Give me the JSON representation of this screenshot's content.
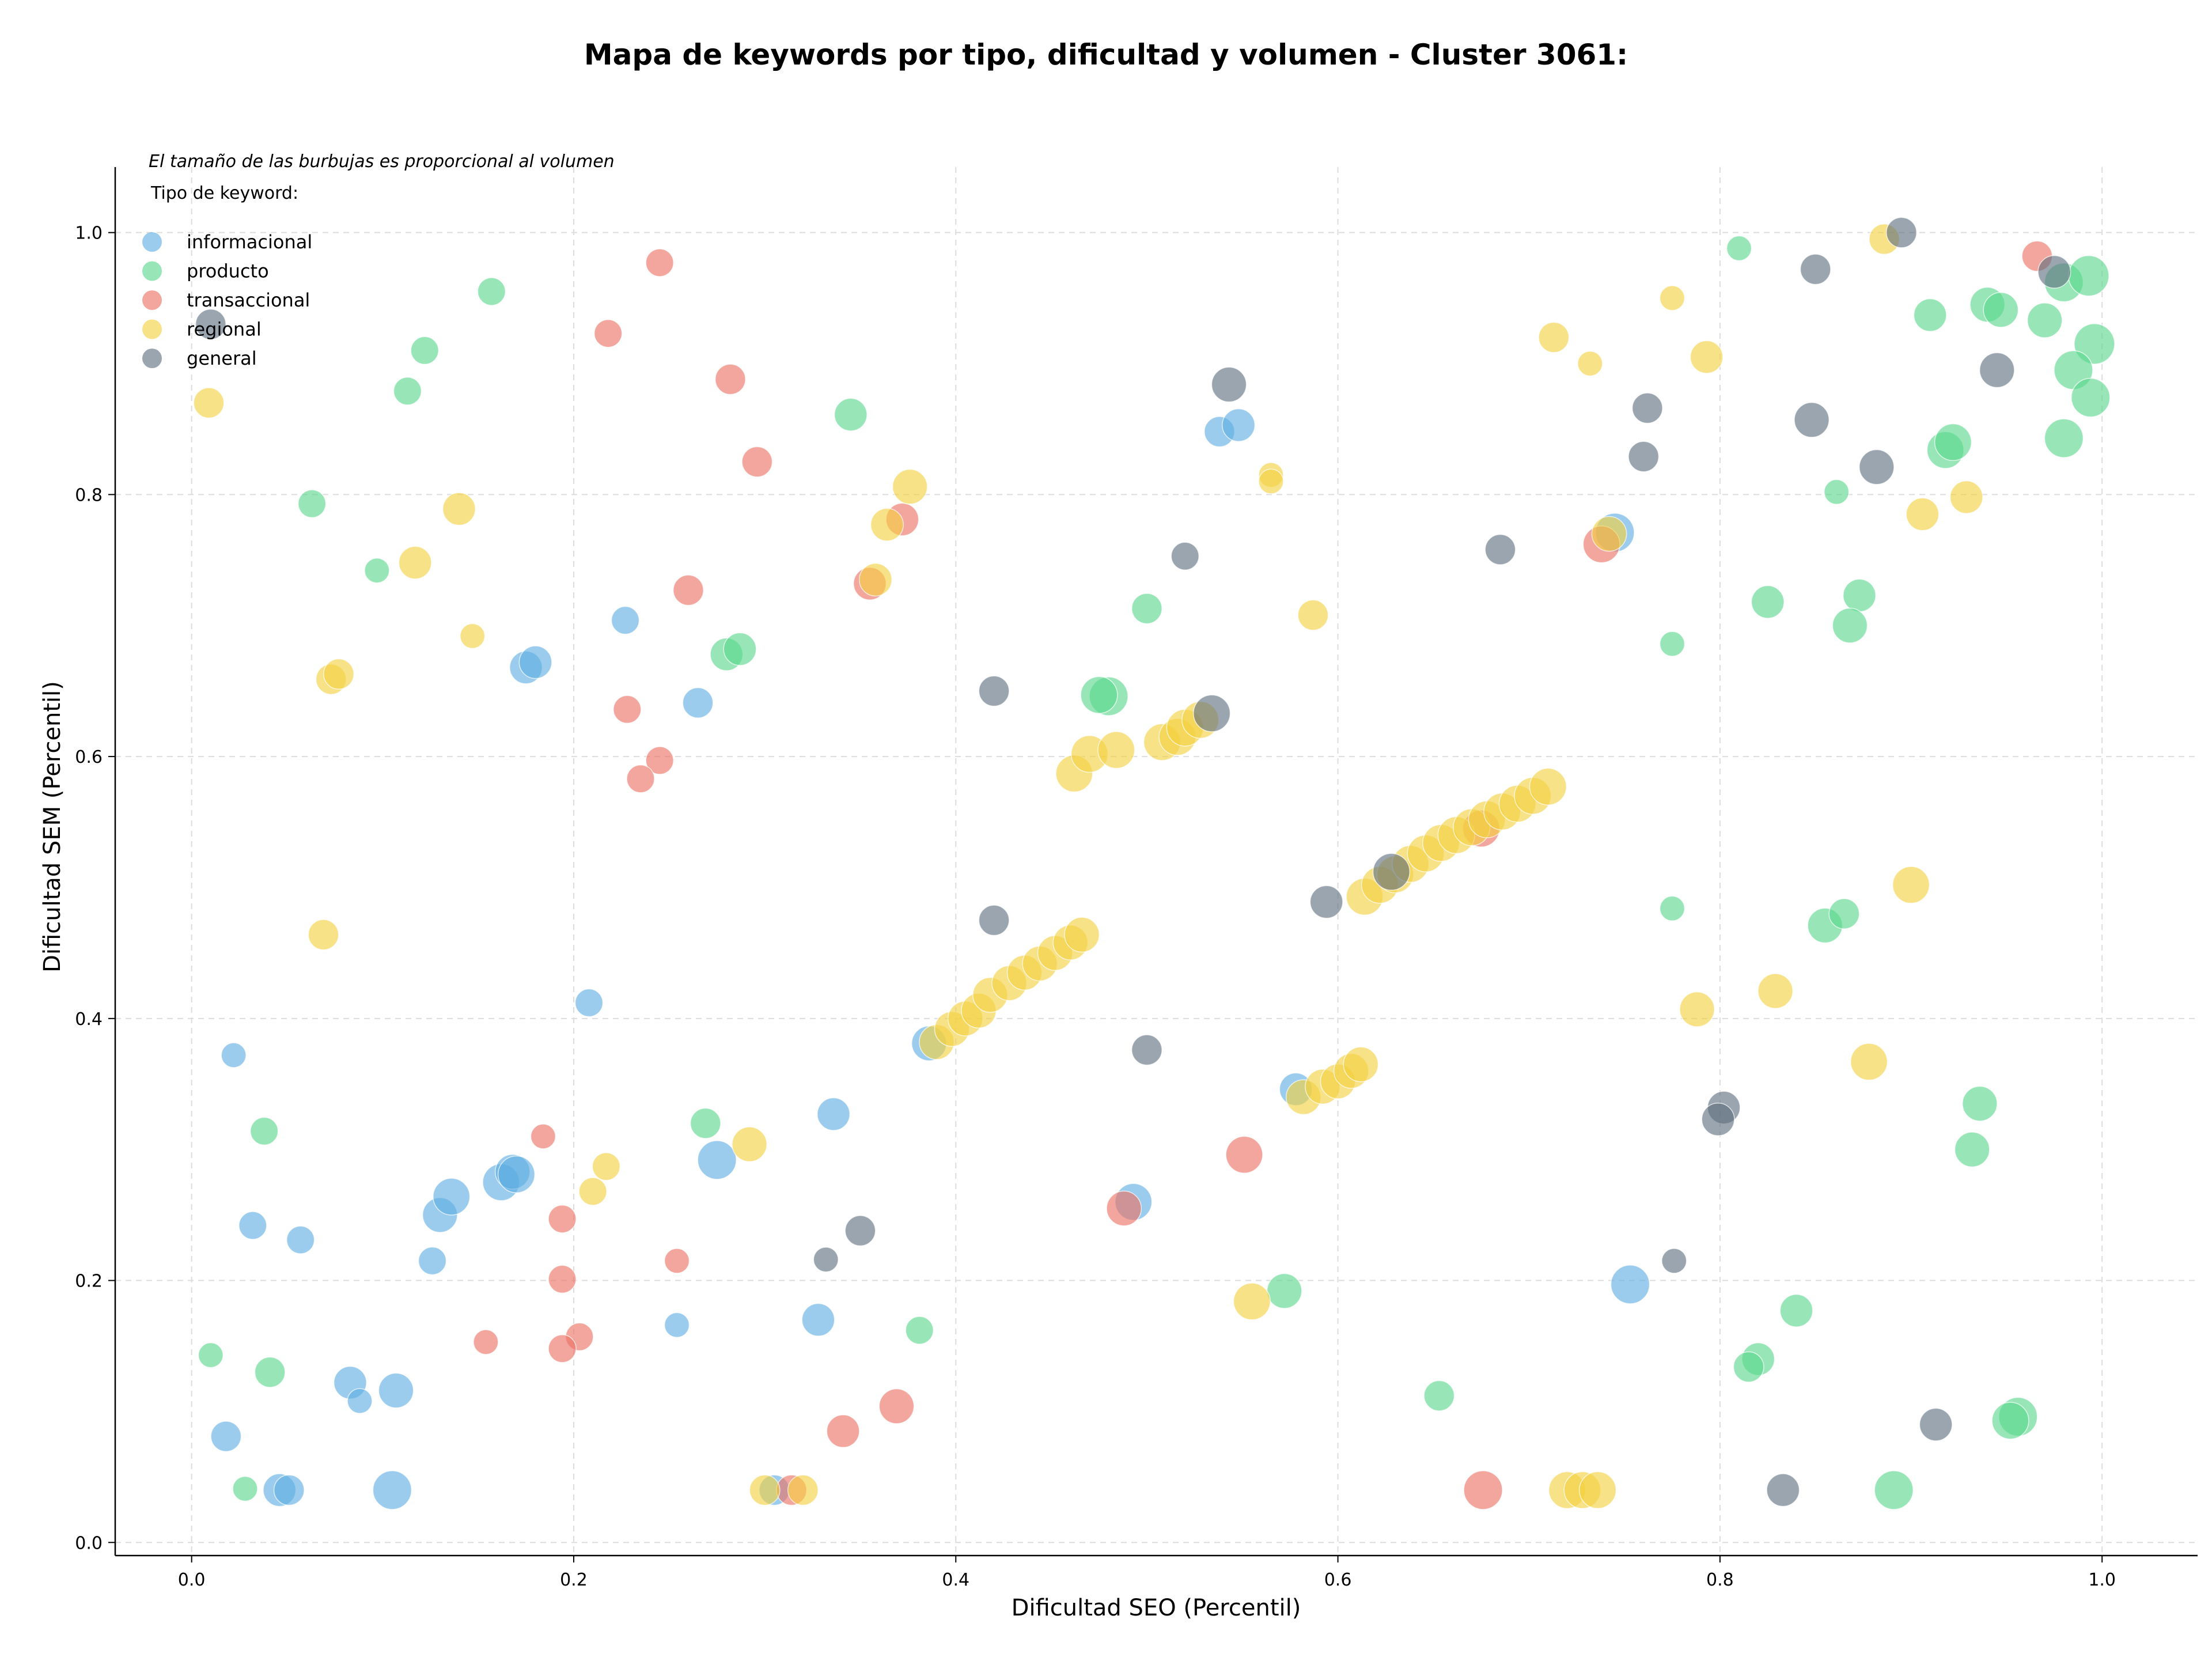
{
  "chart_data": {
    "type": "scatter",
    "title": "Mapa de keywords por tipo, dificultad y volumen - Cluster 3061:",
    "xlabel": "Dificultad SEO (Percentil)",
    "ylabel": "Dificultad SEM (Percentil)",
    "xlim": [
      -0.04,
      1.05
    ],
    "ylim": [
      -0.01,
      1.05
    ],
    "xticks": [
      "0.0",
      "0.2",
      "0.4",
      "0.6",
      "0.8",
      "1.0"
    ],
    "yticks": [
      "0.0",
      "0.2",
      "0.4",
      "0.6",
      "0.8",
      "1.0"
    ],
    "grid": true,
    "legend_position": "top-left",
    "legend_note": "El tamaño de las burbujas es proporcional al volumen",
    "legend_title": "Tipo de keyword:",
    "size_encoding": "volumen",
    "series": [
      {
        "name": "informacional",
        "color": "#5DADE2",
        "points": [
          {
            "x": 0.022,
            "y": 0.372,
            "s": 3
          },
          {
            "x": 0.032,
            "y": 0.242,
            "s": 4
          },
          {
            "x": 0.057,
            "y": 0.231,
            "s": 4
          },
          {
            "x": 0.018,
            "y": 0.081,
            "s": 5
          },
          {
            "x": 0.083,
            "y": 0.122,
            "s": 6
          },
          {
            "x": 0.088,
            "y": 0.108,
            "s": 3
          },
          {
            "x": 0.107,
            "y": 0.116,
            "s": 7
          },
          {
            "x": 0.046,
            "y": 0.04,
            "s": 6
          },
          {
            "x": 0.051,
            "y": 0.04,
            "s": 5
          },
          {
            "x": 0.105,
            "y": 0.04,
            "s": 9
          },
          {
            "x": 0.126,
            "y": 0.215,
            "s": 4
          },
          {
            "x": 0.13,
            "y": 0.25,
            "s": 7
          },
          {
            "x": 0.136,
            "y": 0.264,
            "s": 8
          },
          {
            "x": 0.162,
            "y": 0.275,
            "s": 8
          },
          {
            "x": 0.168,
            "y": 0.283,
            "s": 7
          },
          {
            "x": 0.17,
            "y": 0.281,
            "s": 8
          },
          {
            "x": 0.175,
            "y": 0.668,
            "s": 6
          },
          {
            "x": 0.18,
            "y": 0.672,
            "s": 6
          },
          {
            "x": 0.208,
            "y": 0.412,
            "s": 4
          },
          {
            "x": 0.227,
            "y": 0.704,
            "s": 4
          },
          {
            "x": 0.265,
            "y": 0.641,
            "s": 5
          },
          {
            "x": 0.275,
            "y": 0.292,
            "s": 9
          },
          {
            "x": 0.254,
            "y": 0.166,
            "s": 3
          },
          {
            "x": 0.336,
            "y": 0.327,
            "s": 6
          },
          {
            "x": 0.328,
            "y": 0.17,
            "s": 6
          },
          {
            "x": 0.305,
            "y": 0.04,
            "s": 5
          },
          {
            "x": 0.386,
            "y": 0.381,
            "s": 7
          },
          {
            "x": 0.493,
            "y": 0.26,
            "s": 8
          },
          {
            "x": 0.538,
            "y": 0.848,
            "s": 5
          },
          {
            "x": 0.548,
            "y": 0.853,
            "s": 6
          },
          {
            "x": 0.745,
            "y": 0.771,
            "s": 9
          },
          {
            "x": 0.753,
            "y": 0.197,
            "s": 9
          },
          {
            "x": 0.578,
            "y": 0.346,
            "s": 6
          }
        ]
      },
      {
        "name": "producto",
        "color": "#58D68D",
        "points": [
          {
            "x": 0.157,
            "y": 0.955,
            "s": 4
          },
          {
            "x": 0.122,
            "y": 0.91,
            "s": 4
          },
          {
            "x": 0.113,
            "y": 0.879,
            "s": 4
          },
          {
            "x": 0.063,
            "y": 0.793,
            "s": 4
          },
          {
            "x": 0.097,
            "y": 0.742,
            "s": 3
          },
          {
            "x": 0.038,
            "y": 0.314,
            "s": 4
          },
          {
            "x": 0.01,
            "y": 0.143,
            "s": 3
          },
          {
            "x": 0.041,
            "y": 0.13,
            "s": 5
          },
          {
            "x": 0.028,
            "y": 0.041,
            "s": 3
          },
          {
            "x": 0.345,
            "y": 0.861,
            "s": 6
          },
          {
            "x": 0.28,
            "y": 0.678,
            "s": 6
          },
          {
            "x": 0.287,
            "y": 0.682,
            "s": 6
          },
          {
            "x": 0.269,
            "y": 0.32,
            "s": 5
          },
          {
            "x": 0.381,
            "y": 0.162,
            "s": 4
          },
          {
            "x": 0.5,
            "y": 0.713,
            "s": 5
          },
          {
            "x": 0.48,
            "y": 0.646,
            "s": 9
          },
          {
            "x": 0.475,
            "y": 0.647,
            "s": 8
          },
          {
            "x": 0.572,
            "y": 0.192,
            "s": 7
          },
          {
            "x": 0.653,
            "y": 0.112,
            "s": 5
          },
          {
            "x": 0.775,
            "y": 0.686,
            "s": 3
          },
          {
            "x": 0.775,
            "y": 0.484,
            "s": 3
          },
          {
            "x": 0.81,
            "y": 0.988,
            "s": 3
          },
          {
            "x": 0.825,
            "y": 0.718,
            "s": 6
          },
          {
            "x": 0.873,
            "y": 0.723,
            "s": 6
          },
          {
            "x": 0.868,
            "y": 0.7,
            "s": 7
          },
          {
            "x": 0.861,
            "y": 0.802,
            "s": 3
          },
          {
            "x": 0.855,
            "y": 0.471,
            "s": 7
          },
          {
            "x": 0.865,
            "y": 0.48,
            "s": 5
          },
          {
            "x": 0.82,
            "y": 0.14,
            "s": 6
          },
          {
            "x": 0.815,
            "y": 0.134,
            "s": 5
          },
          {
            "x": 0.84,
            "y": 0.177,
            "s": 6
          },
          {
            "x": 0.891,
            "y": 0.04,
            "s": 9
          },
          {
            "x": 0.91,
            "y": 0.937,
            "s": 6
          },
          {
            "x": 0.94,
            "y": 0.945,
            "s": 7
          },
          {
            "x": 0.947,
            "y": 0.941,
            "s": 7
          },
          {
            "x": 0.918,
            "y": 0.834,
            "s": 8
          },
          {
            "x": 0.922,
            "y": 0.84,
            "s": 8
          },
          {
            "x": 0.97,
            "y": 0.933,
            "s": 7
          },
          {
            "x": 0.98,
            "y": 0.962,
            "s": 9
          },
          {
            "x": 0.993,
            "y": 0.967,
            "s": 10
          },
          {
            "x": 0.996,
            "y": 0.915,
            "s": 10
          },
          {
            "x": 0.985,
            "y": 0.895,
            "s": 9
          },
          {
            "x": 0.994,
            "y": 0.874,
            "s": 9
          },
          {
            "x": 0.98,
            "y": 0.843,
            "s": 9
          },
          {
            "x": 0.936,
            "y": 0.335,
            "s": 7
          },
          {
            "x": 0.932,
            "y": 0.3,
            "s": 7
          },
          {
            "x": 0.956,
            "y": 0.096,
            "s": 9
          },
          {
            "x": 0.952,
            "y": 0.093,
            "s": 8
          }
        ]
      },
      {
        "name": "transaccional",
        "color": "#EC7063",
        "points": [
          {
            "x": 0.245,
            "y": 0.977,
            "s": 4
          },
          {
            "x": 0.218,
            "y": 0.923,
            "s": 4
          },
          {
            "x": 0.282,
            "y": 0.888,
            "s": 5
          },
          {
            "x": 0.296,
            "y": 0.825,
            "s": 5
          },
          {
            "x": 0.26,
            "y": 0.727,
            "s": 5
          },
          {
            "x": 0.228,
            "y": 0.636,
            "s": 4
          },
          {
            "x": 0.245,
            "y": 0.597,
            "s": 4
          },
          {
            "x": 0.235,
            "y": 0.583,
            "s": 4
          },
          {
            "x": 0.372,
            "y": 0.781,
            "s": 6
          },
          {
            "x": 0.355,
            "y": 0.732,
            "s": 6
          },
          {
            "x": 0.184,
            "y": 0.31,
            "s": 3
          },
          {
            "x": 0.194,
            "y": 0.247,
            "s": 4
          },
          {
            "x": 0.194,
            "y": 0.201,
            "s": 4
          },
          {
            "x": 0.154,
            "y": 0.153,
            "s": 3
          },
          {
            "x": 0.203,
            "y": 0.157,
            "s": 4
          },
          {
            "x": 0.194,
            "y": 0.148,
            "s": 4
          },
          {
            "x": 0.254,
            "y": 0.215,
            "s": 3
          },
          {
            "x": 0.341,
            "y": 0.085,
            "s": 6
          },
          {
            "x": 0.369,
            "y": 0.104,
            "s": 7
          },
          {
            "x": 0.314,
            "y": 0.04,
            "s": 5
          },
          {
            "x": 0.488,
            "y": 0.255,
            "s": 7
          },
          {
            "x": 0.551,
            "y": 0.296,
            "s": 8
          },
          {
            "x": 0.676,
            "y": 0.04,
            "s": 9
          },
          {
            "x": 0.738,
            "y": 0.762,
            "s": 8
          },
          {
            "x": 0.966,
            "y": 0.982,
            "s": 5
          },
          {
            "x": 0.675,
            "y": 0.545,
            "s": 8
          }
        ]
      },
      {
        "name": "regional",
        "color": "#F4D03F",
        "points": [
          {
            "x": 0.009,
            "y": 0.87,
            "s": 5
          },
          {
            "x": 0.14,
            "y": 0.789,
            "s": 6
          },
          {
            "x": 0.117,
            "y": 0.748,
            "s": 6
          },
          {
            "x": 0.147,
            "y": 0.692,
            "s": 3
          },
          {
            "x": 0.073,
            "y": 0.659,
            "s": 5
          },
          {
            "x": 0.077,
            "y": 0.663,
            "s": 5
          },
          {
            "x": 0.069,
            "y": 0.464,
            "s": 5
          },
          {
            "x": 0.217,
            "y": 0.287,
            "s": 4
          },
          {
            "x": 0.21,
            "y": 0.268,
            "s": 4
          },
          {
            "x": 0.292,
            "y": 0.304,
            "s": 7
          },
          {
            "x": 0.376,
            "y": 0.806,
            "s": 7
          },
          {
            "x": 0.364,
            "y": 0.777,
            "s": 6
          },
          {
            "x": 0.358,
            "y": 0.735,
            "s": 6
          },
          {
            "x": 0.3,
            "y": 0.04,
            "s": 5
          },
          {
            "x": 0.32,
            "y": 0.04,
            "s": 5
          },
          {
            "x": 0.462,
            "y": 0.587,
            "s": 8
          },
          {
            "x": 0.47,
            "y": 0.602,
            "s": 8
          },
          {
            "x": 0.484,
            "y": 0.605,
            "s": 8
          },
          {
            "x": 0.508,
            "y": 0.611,
            "s": 8
          },
          {
            "x": 0.516,
            "y": 0.615,
            "s": 8
          },
          {
            "x": 0.52,
            "y": 0.622,
            "s": 8
          },
          {
            "x": 0.528,
            "y": 0.628,
            "s": 8
          },
          {
            "x": 0.565,
            "y": 0.815,
            "s": 3
          },
          {
            "x": 0.565,
            "y": 0.81,
            "s": 3
          },
          {
            "x": 0.587,
            "y": 0.708,
            "s": 5
          },
          {
            "x": 0.39,
            "y": 0.382,
            "s": 7
          },
          {
            "x": 0.398,
            "y": 0.392,
            "s": 7
          },
          {
            "x": 0.405,
            "y": 0.4,
            "s": 7
          },
          {
            "x": 0.412,
            "y": 0.406,
            "s": 7
          },
          {
            "x": 0.418,
            "y": 0.418,
            "s": 7
          },
          {
            "x": 0.428,
            "y": 0.427,
            "s": 7
          },
          {
            "x": 0.436,
            "y": 0.435,
            "s": 7
          },
          {
            "x": 0.444,
            "y": 0.442,
            "s": 7
          },
          {
            "x": 0.452,
            "y": 0.45,
            "s": 7
          },
          {
            "x": 0.46,
            "y": 0.458,
            "s": 7
          },
          {
            "x": 0.466,
            "y": 0.464,
            "s": 7
          },
          {
            "x": 0.555,
            "y": 0.184,
            "s": 8
          },
          {
            "x": 0.582,
            "y": 0.34,
            "s": 7
          },
          {
            "x": 0.592,
            "y": 0.348,
            "s": 7
          },
          {
            "x": 0.6,
            "y": 0.352,
            "s": 7
          },
          {
            "x": 0.607,
            "y": 0.36,
            "s": 7
          },
          {
            "x": 0.612,
            "y": 0.365,
            "s": 7
          },
          {
            "x": 0.614,
            "y": 0.493,
            "s": 8
          },
          {
            "x": 0.622,
            "y": 0.502,
            "s": 8
          },
          {
            "x": 0.63,
            "y": 0.51,
            "s": 8
          },
          {
            "x": 0.638,
            "y": 0.518,
            "s": 8
          },
          {
            "x": 0.646,
            "y": 0.526,
            "s": 8
          },
          {
            "x": 0.654,
            "y": 0.534,
            "s": 8
          },
          {
            "x": 0.662,
            "y": 0.54,
            "s": 8
          },
          {
            "x": 0.67,
            "y": 0.546,
            "s": 8
          },
          {
            "x": 0.678,
            "y": 0.552,
            "s": 8
          },
          {
            "x": 0.686,
            "y": 0.558,
            "s": 8
          },
          {
            "x": 0.694,
            "y": 0.564,
            "s": 8
          },
          {
            "x": 0.702,
            "y": 0.57,
            "s": 8
          },
          {
            "x": 0.71,
            "y": 0.577,
            "s": 8
          },
          {
            "x": 0.713,
            "y": 0.92,
            "s": 5
          },
          {
            "x": 0.732,
            "y": 0.9,
            "s": 3
          },
          {
            "x": 0.775,
            "y": 0.95,
            "s": 3
          },
          {
            "x": 0.793,
            "y": 0.905,
            "s": 6
          },
          {
            "x": 0.742,
            "y": 0.77,
            "s": 7
          },
          {
            "x": 0.72,
            "y": 0.04,
            "s": 8
          },
          {
            "x": 0.728,
            "y": 0.04,
            "s": 8
          },
          {
            "x": 0.736,
            "y": 0.04,
            "s": 8
          },
          {
            "x": 0.788,
            "y": 0.407,
            "s": 7
          },
          {
            "x": 0.829,
            "y": 0.421,
            "s": 7
          },
          {
            "x": 0.878,
            "y": 0.367,
            "s": 8
          },
          {
            "x": 0.9,
            "y": 0.502,
            "s": 8
          },
          {
            "x": 0.886,
            "y": 0.995,
            "s": 5
          },
          {
            "x": 0.906,
            "y": 0.785,
            "s": 6
          },
          {
            "x": 0.929,
            "y": 0.798,
            "s": 6
          }
        ]
      },
      {
        "name": "general",
        "color": "#5D6D7E",
        "points": [
          {
            "x": 0.01,
            "y": 0.93,
            "s": 5
          },
          {
            "x": 0.42,
            "y": 0.65,
            "s": 5
          },
          {
            "x": 0.42,
            "y": 0.475,
            "s": 5
          },
          {
            "x": 0.35,
            "y": 0.238,
            "s": 5
          },
          {
            "x": 0.332,
            "y": 0.216,
            "s": 3
          },
          {
            "x": 0.52,
            "y": 0.753,
            "s": 4
          },
          {
            "x": 0.5,
            "y": 0.376,
            "s": 5
          },
          {
            "x": 0.543,
            "y": 0.884,
            "s": 7
          },
          {
            "x": 0.534,
            "y": 0.633,
            "s": 8
          },
          {
            "x": 0.594,
            "y": 0.489,
            "s": 6
          },
          {
            "x": 0.628,
            "y": 0.512,
            "s": 8
          },
          {
            "x": 0.685,
            "y": 0.758,
            "s": 5
          },
          {
            "x": 0.762,
            "y": 0.866,
            "s": 5
          },
          {
            "x": 0.76,
            "y": 0.829,
            "s": 5
          },
          {
            "x": 0.776,
            "y": 0.215,
            "s": 3
          },
          {
            "x": 0.802,
            "y": 0.332,
            "s": 6
          },
          {
            "x": 0.799,
            "y": 0.323,
            "s": 6
          },
          {
            "x": 0.85,
            "y": 0.972,
            "s": 5
          },
          {
            "x": 0.848,
            "y": 0.857,
            "s": 7
          },
          {
            "x": 0.882,
            "y": 0.821,
            "s": 7
          },
          {
            "x": 0.895,
            "y": 1.0,
            "s": 5
          },
          {
            "x": 0.945,
            "y": 0.895,
            "s": 7
          },
          {
            "x": 0.913,
            "y": 0.09,
            "s": 6
          },
          {
            "x": 0.833,
            "y": 0.04,
            "s": 6
          },
          {
            "x": 0.975,
            "y": 0.97,
            "s": 6
          }
        ]
      }
    ]
  }
}
